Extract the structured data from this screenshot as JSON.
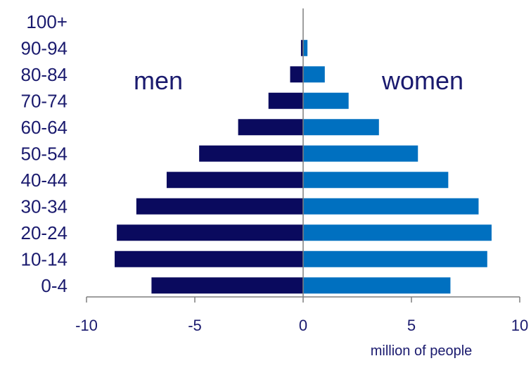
{
  "chart_data": {
    "type": "bar",
    "orientation": "horizontal",
    "title": "",
    "xlabel": "million of people",
    "ylabel": "",
    "xlim": [
      -10,
      10
    ],
    "xticks": [
      -10,
      -5,
      0,
      5,
      10
    ],
    "categories": [
      "0-4",
      "10-14",
      "20-24",
      "30-34",
      "40-44",
      "50-54",
      "60-64",
      "70-74",
      "80-84",
      "90-94",
      "100+"
    ],
    "series": [
      {
        "name": "men",
        "values": [
          -7.0,
          -8.7,
          -8.6,
          -7.7,
          -6.3,
          -4.8,
          -3.0,
          -1.6,
          -0.6,
          -0.1,
          0
        ]
      },
      {
        "name": "women",
        "values": [
          6.8,
          8.5,
          8.7,
          8.1,
          6.7,
          5.3,
          3.5,
          2.1,
          1.0,
          0.2,
          0
        ]
      }
    ],
    "colors": {
      "men": "#0a0a5e",
      "women": "#0070c0",
      "axis": "#7f7f7f",
      "text": "#1a1a6e"
    },
    "grid": false,
    "legend": "none"
  }
}
